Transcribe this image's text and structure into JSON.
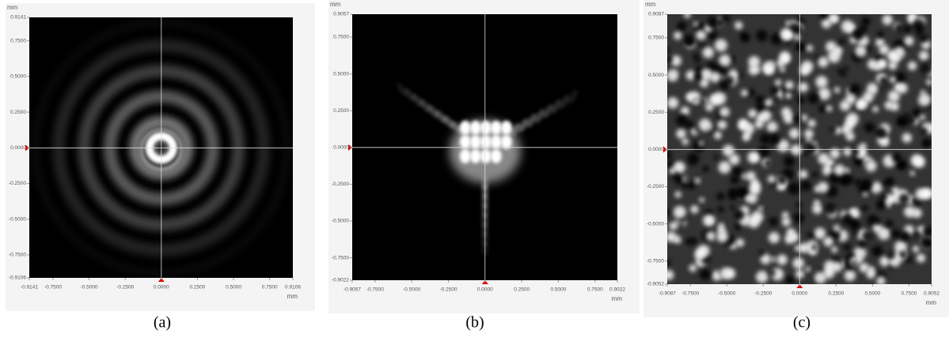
{
  "chart_data": [
    {
      "type": "image",
      "caption": "(a)",
      "x_unit": "mm",
      "y_unit": "mm",
      "xlim": [
        -0.9141,
        0.9106
      ],
      "ylim": [
        -0.9106,
        0.9141
      ],
      "xticks": [
        -0.9141,
        {
          "value": -0.75,
          "label": "-0.7500"
        },
        {
          "value": -0.5,
          "label": "-0.5000"
        },
        {
          "value": -0.25,
          "label": "-0.2500"
        },
        {
          "value": 0,
          "label": "0.0000"
        },
        {
          "value": 0.25,
          "label": "0.2500"
        },
        {
          "value": 0.5,
          "label": "0.5000"
        },
        {
          "value": 0.75,
          "label": "0.7500"
        },
        0.9106
      ],
      "yticks": [
        0.9141,
        {
          "value": 0.75,
          "label": "0.7500"
        },
        {
          "value": 0.5,
          "label": "0.5000"
        },
        {
          "value": 0.25,
          "label": "0.2500"
        },
        {
          "value": 0,
          "label": "0.0000"
        },
        {
          "value": -0.25,
          "label": "-0.2500"
        },
        {
          "value": -0.5,
          "label": "-0.5000"
        },
        {
          "value": -0.75,
          "label": "-0.7500"
        },
        -0.9106
      ]
    },
    {
      "type": "image",
      "caption": "(b)",
      "x_unit": "mm",
      "y_unit": "mm",
      "xlim": [
        -0.9057,
        0.9022
      ],
      "ylim": [
        -0.9022,
        0.9057
      ],
      "xticks": [
        -0.9057,
        {
          "value": -0.75,
          "label": "-0.7500"
        },
        {
          "value": -0.5,
          "label": "-0.5000"
        },
        {
          "value": -0.25,
          "label": "-0.2500"
        },
        {
          "value": 0,
          "label": "0.0000"
        },
        {
          "value": 0.25,
          "label": "0.2500"
        },
        {
          "value": 0.5,
          "label": "0.5000"
        },
        {
          "value": 0.75,
          "label": "0.7500"
        },
        0.9022
      ],
      "yticks": [
        0.9057,
        {
          "value": 0.75,
          "label": "0.7500"
        },
        {
          "value": 0.5,
          "label": "0.5000"
        },
        {
          "value": 0.25,
          "label": "0.2500"
        },
        {
          "value": 0,
          "label": "0.0000"
        },
        {
          "value": -0.25,
          "label": "-0.2500"
        },
        {
          "value": -0.5,
          "label": "-0.5000"
        },
        {
          "value": -0.75,
          "label": "-0.7500"
        },
        -0.9022
      ]
    },
    {
      "type": "image",
      "caption": "(c)",
      "x_unit": "mm",
      "y_unit": "mm",
      "xlim": [
        -0.9087,
        0.9052
      ],
      "ylim": [
        -0.9052,
        0.9087
      ],
      "xticks": [
        -0.9087,
        {
          "value": -0.75,
          "label": "-0.7500"
        },
        {
          "value": -0.5,
          "label": "-0.5000"
        },
        {
          "value": -0.25,
          "label": "-0.2500"
        },
        {
          "value": 0,
          "label": "0.0000"
        },
        {
          "value": 0.25,
          "label": "0.2500"
        },
        {
          "value": 0.5,
          "label": "0.5000"
        },
        {
          "value": 0.75,
          "label": "0.7500"
        },
        0.9052
      ],
      "yticks": [
        0.9087,
        {
          "value": 0.75,
          "label": "0.7500"
        },
        {
          "value": 0.5,
          "label": "0.5000"
        },
        {
          "value": 0.25,
          "label": "0.2500"
        },
        {
          "value": 0,
          "label": "0.0000"
        },
        {
          "value": -0.25,
          "label": "-0.2500"
        },
        {
          "value": -0.5,
          "label": "-0.5000"
        },
        {
          "value": -0.75,
          "label": "-0.7500"
        },
        -0.9052
      ]
    }
  ]
}
